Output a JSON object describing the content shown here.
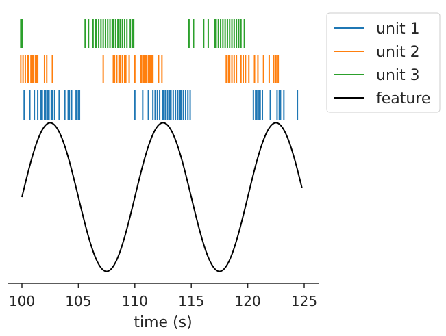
{
  "chart_data": {
    "type": "raster+line",
    "title": "",
    "xlabel": "time (s)",
    "ylabel": "",
    "xlim": [
      98.8,
      126.0
    ],
    "xticks": [
      100,
      105,
      110,
      115,
      120,
      125
    ],
    "legend": {
      "placement": "outside-top-right",
      "entries": [
        "unit 1",
        "unit 2",
        "unit 3",
        "feature"
      ]
    },
    "colors": {
      "unit 1": "#1f77b4",
      "unit 2": "#ff7f0e",
      "unit 3": "#2ca02c",
      "feature": "#000000"
    },
    "series": [
      {
        "name": "unit 1",
        "type": "spikes",
        "times": [
          100.2,
          100.7,
          101.1,
          101.4,
          101.7,
          101.8,
          102.0,
          102.1,
          102.3,
          102.4,
          102.6,
          102.7,
          102.9,
          103.3,
          103.8,
          104.1,
          104.2,
          104.4,
          104.8,
          105.0,
          105.1,
          110.0,
          110.7,
          111.2,
          111.6,
          111.8,
          112.0,
          112.2,
          112.5,
          112.7,
          112.9,
          113.1,
          113.2,
          113.4,
          113.6,
          113.8,
          114.0,
          114.1,
          114.3,
          114.5,
          114.7,
          114.9,
          120.5,
          120.7,
          120.8,
          121.0,
          121.1,
          121.3,
          122.0,
          122.6,
          122.8,
          122.9,
          123.2,
          124.4
        ]
      },
      {
        "name": "unit 2",
        "type": "spikes",
        "times": [
          99.9,
          100.1,
          100.3,
          100.5,
          100.6,
          100.8,
          100.9,
          101.0,
          101.2,
          101.3,
          101.4,
          102.0,
          102.2,
          102.7,
          107.2,
          108.1,
          108.2,
          108.4,
          108.6,
          108.7,
          108.9,
          109.1,
          109.2,
          109.5,
          110.0,
          110.5,
          110.6,
          110.8,
          110.9,
          111.0,
          111.2,
          111.3,
          111.4,
          111.5,
          111.6,
          112.1,
          112.4,
          118.1,
          118.3,
          118.4,
          118.6,
          118.8,
          119.0,
          119.4,
          119.6,
          119.8,
          120.1,
          120.6,
          120.9,
          121.4,
          121.9,
          122.3,
          122.5,
          122.7
        ]
      },
      {
        "name": "unit 3",
        "type": "spikes",
        "times": [
          99.9,
          100.0,
          105.6,
          105.9,
          106.3,
          106.5,
          106.6,
          106.8,
          107.0,
          107.2,
          107.4,
          107.6,
          107.8,
          108.0,
          108.1,
          108.3,
          108.5,
          108.7,
          108.9,
          109.1,
          109.3,
          109.6,
          109.8,
          109.9,
          114.8,
          115.2,
          116.1,
          116.5,
          117.1,
          117.2,
          117.4,
          117.6,
          117.8,
          118.0,
          118.2,
          118.4,
          118.6,
          118.8,
          119.0,
          119.2,
          119.4,
          119.7
        ]
      },
      {
        "name": "feature",
        "type": "line",
        "function": "sine",
        "x_range": [
          100,
          124.8
        ],
        "amplitude": 1.0,
        "period_s": 10,
        "peak_times": [
          102.5,
          112.5,
          122.5
        ],
        "trough_times": [
          107.5,
          117.5
        ]
      }
    ]
  }
}
